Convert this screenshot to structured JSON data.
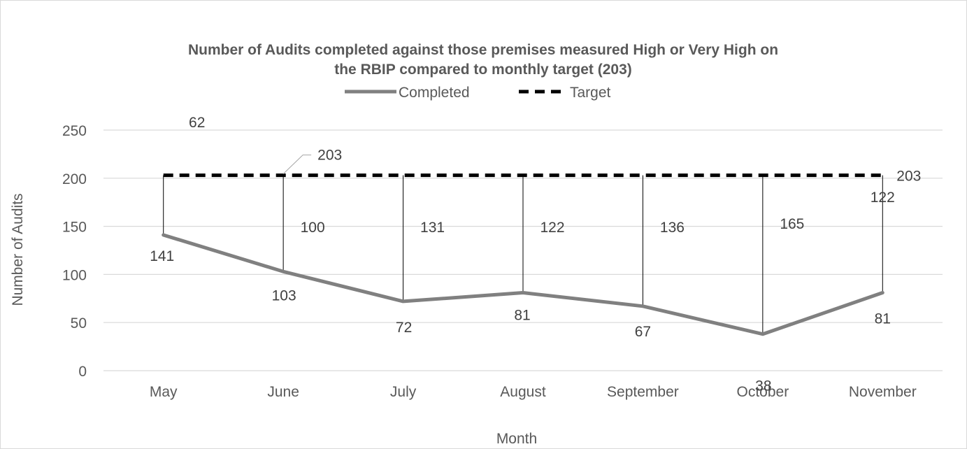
{
  "chart_data": {
    "type": "line",
    "title_line1": "Number of Audits completed against those premises measured High or Very High on",
    "title_line2": "the RBIP compared to monthly target (203)",
    "xlabel": "Month",
    "ylabel": "Number of Audits",
    "categories": [
      "May",
      "June",
      "July",
      "August",
      "September",
      "October",
      "November"
    ],
    "ylim": [
      0,
      250
    ],
    "yticks": [
      "0",
      "50",
      "100",
      "150",
      "200",
      "250"
    ],
    "grid": true,
    "legend_position": "top",
    "series": [
      {
        "name": "Completed",
        "values": [
          141,
          103,
          72,
          81,
          67,
          38,
          81
        ],
        "color": "#808080",
        "style": "solid"
      },
      {
        "name": "Target",
        "values": [
          203,
          203,
          203,
          203,
          203,
          203,
          203
        ],
        "color": "#000000",
        "style": "dashed"
      }
    ],
    "gap_labels": [
      "62",
      "100",
      "131",
      "122",
      "136",
      "165",
      "122"
    ],
    "completed_labels": [
      "141",
      "103",
      "72",
      "81",
      "67",
      "38",
      "81"
    ],
    "target_labels": [
      "203",
      "203"
    ]
  }
}
